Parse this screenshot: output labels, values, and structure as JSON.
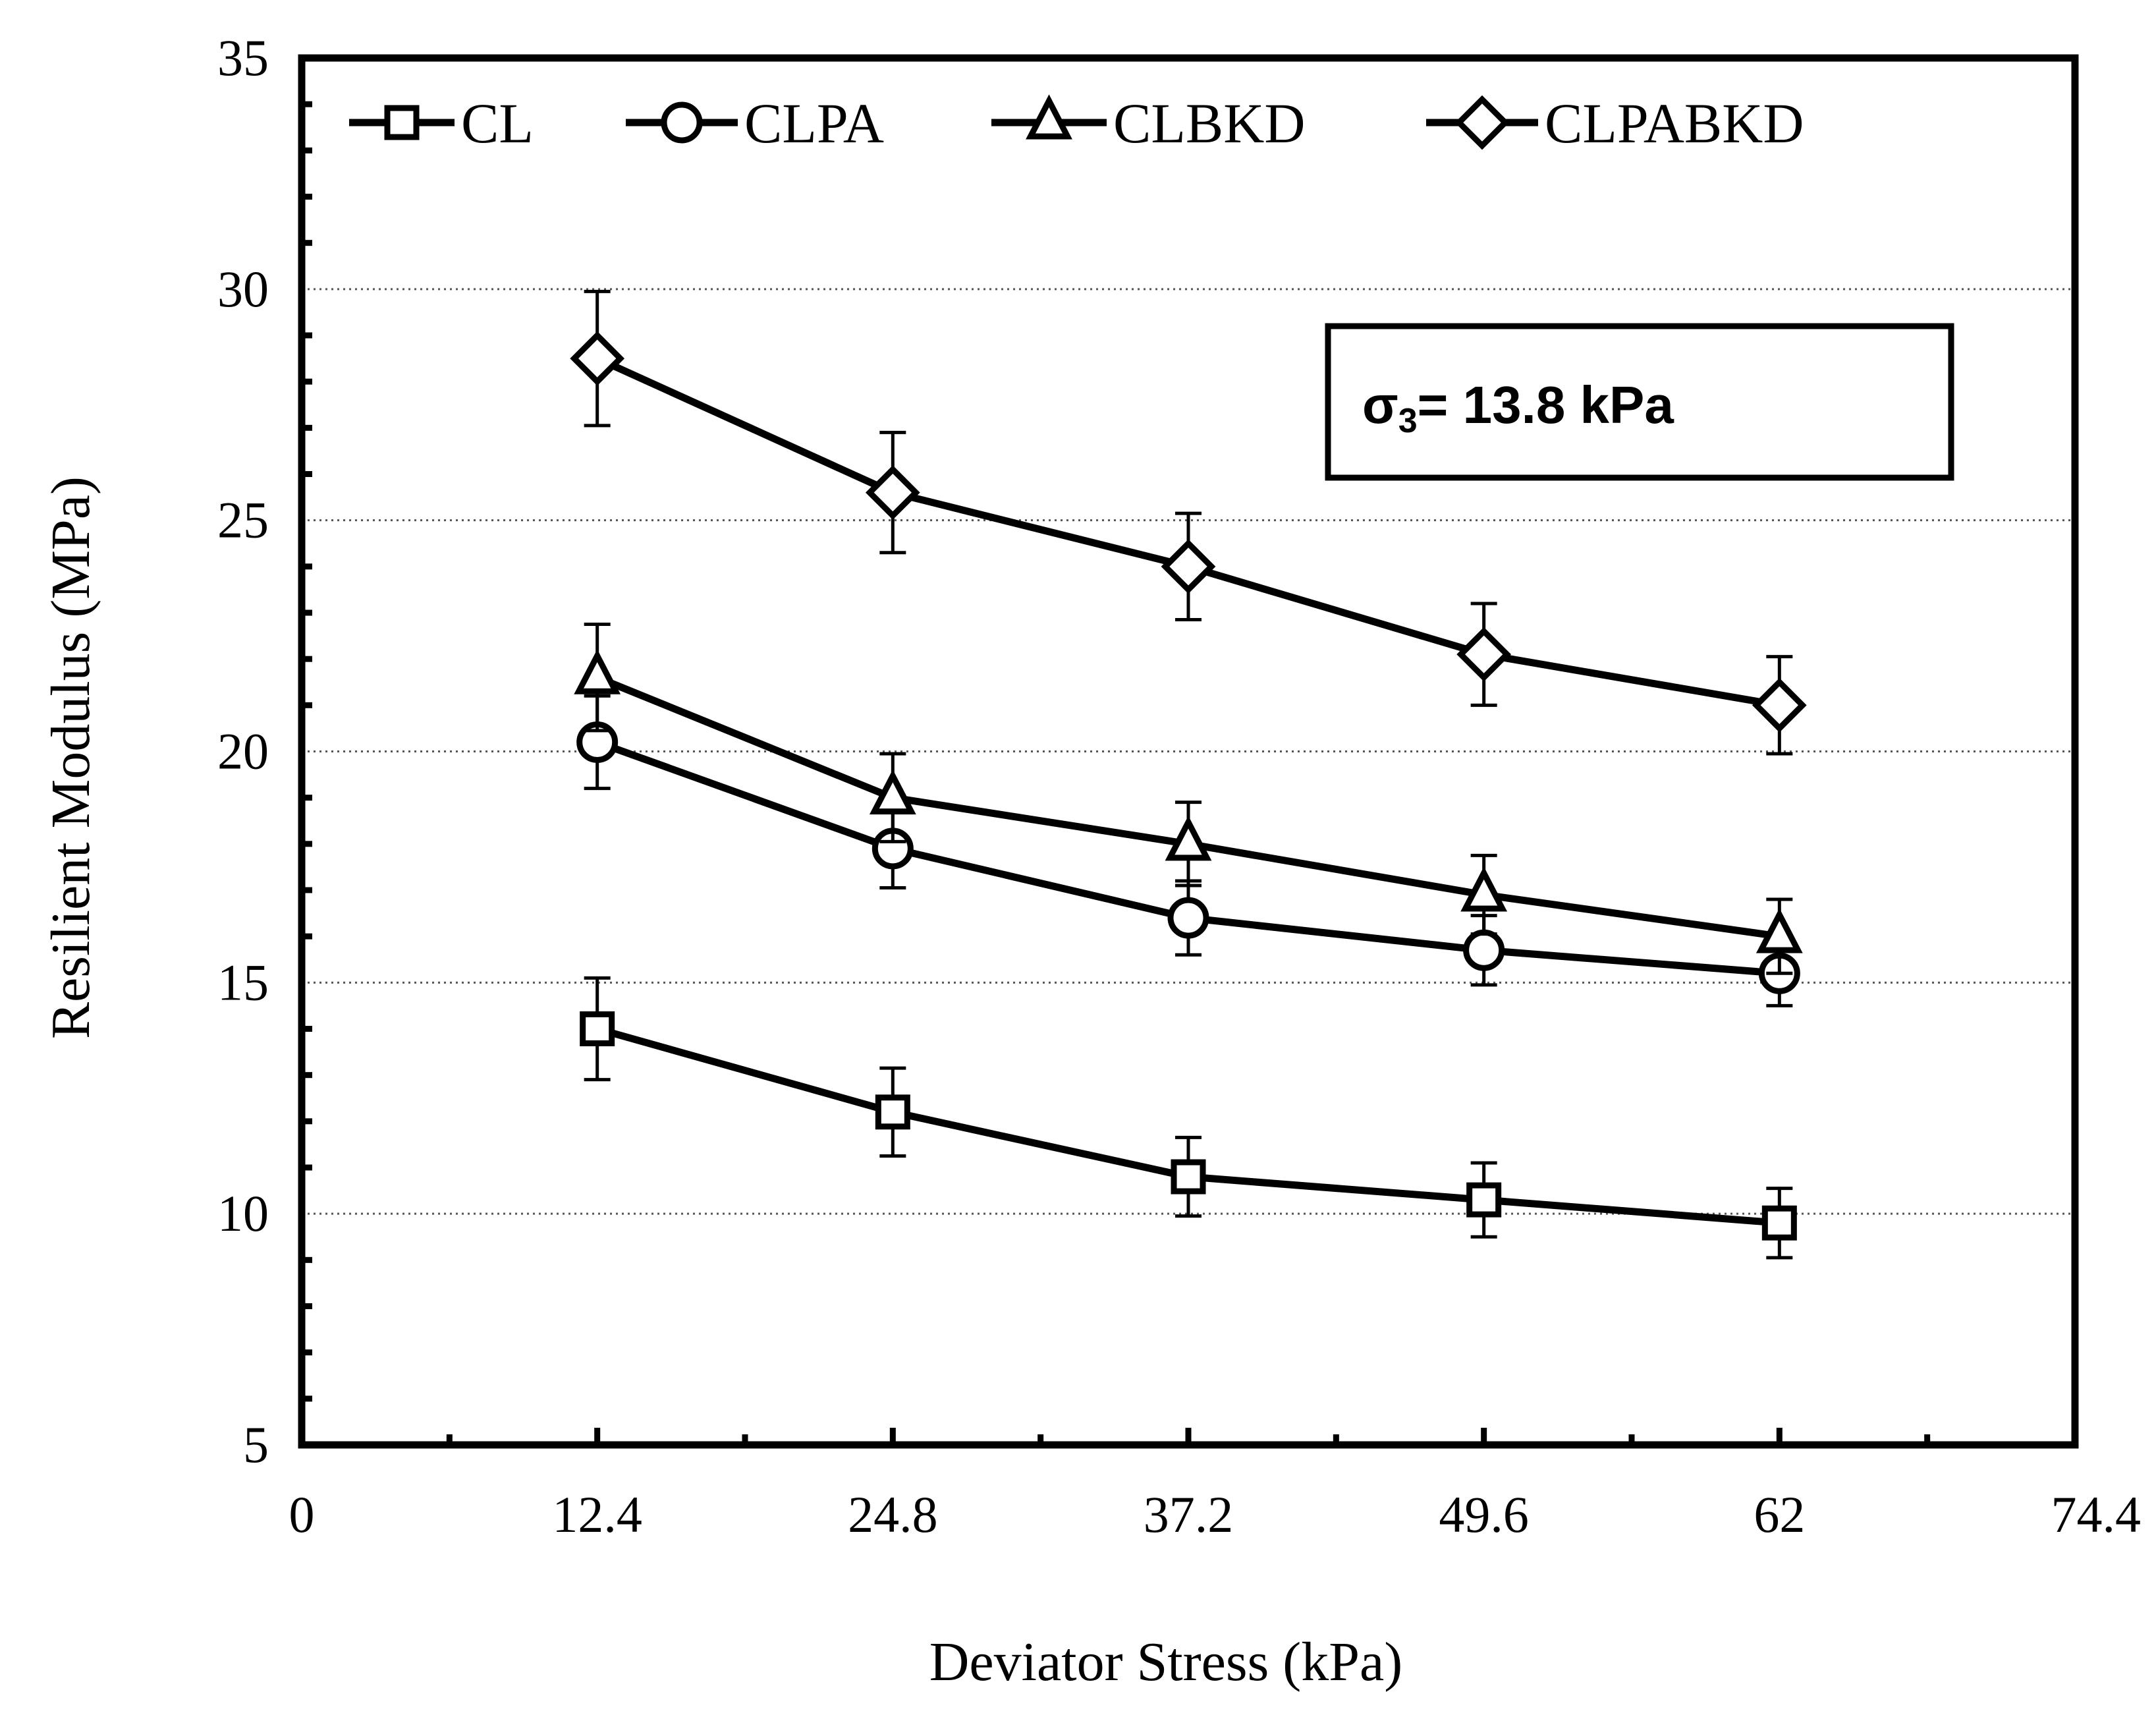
{
  "chart_data": {
    "type": "line",
    "title": "",
    "xlabel": "Deviator Stress (kPa)",
    "ylabel": "Resilient Modulus (MPa)",
    "xlim": [
      0,
      74.4
    ],
    "ylim": [
      5,
      35
    ],
    "xticks": [
      "0",
      "12.4",
      "24.8",
      "37.2",
      "49.6",
      "62",
      "74.4"
    ],
    "yticks": [
      "5",
      "10",
      "15",
      "20",
      "25",
      "30",
      "35"
    ],
    "x": [
      12.4,
      24.8,
      37.2,
      49.6,
      62
    ],
    "grid": "horizontal dotted at y = 10, 15, 20, 25, 30",
    "legend": {
      "placement": "top",
      "entries": [
        "CL",
        "CLPA",
        "CLBKD",
        "CLPABKD"
      ]
    },
    "annotation": {
      "prefix": "σ",
      "subscript": "3",
      "text": "= 13.8 kPa"
    },
    "series": [
      {
        "name": "CL",
        "marker": "square",
        "values": [
          14.0,
          12.2,
          10.8,
          10.3,
          9.8
        ],
        "errors": [
          1.1,
          0.95,
          0.85,
          0.8,
          0.75
        ]
      },
      {
        "name": "CLPA",
        "marker": "circle",
        "values": [
          20.2,
          17.9,
          16.4,
          15.7,
          15.2
        ],
        "errors": [
          1.0,
          0.85,
          0.8,
          0.75,
          0.7
        ]
      },
      {
        "name": "CLBKD",
        "marker": "triangle",
        "values": [
          21.6,
          19.0,
          18.0,
          16.9,
          16.0
        ],
        "errors": [
          1.15,
          0.95,
          0.9,
          0.85,
          0.8
        ]
      },
      {
        "name": "CLPABKD",
        "marker": "diamond",
        "values": [
          28.5,
          25.6,
          24.0,
          22.1,
          21.0
        ],
        "errors": [
          1.45,
          1.3,
          1.15,
          1.1,
          1.05
        ]
      }
    ]
  }
}
